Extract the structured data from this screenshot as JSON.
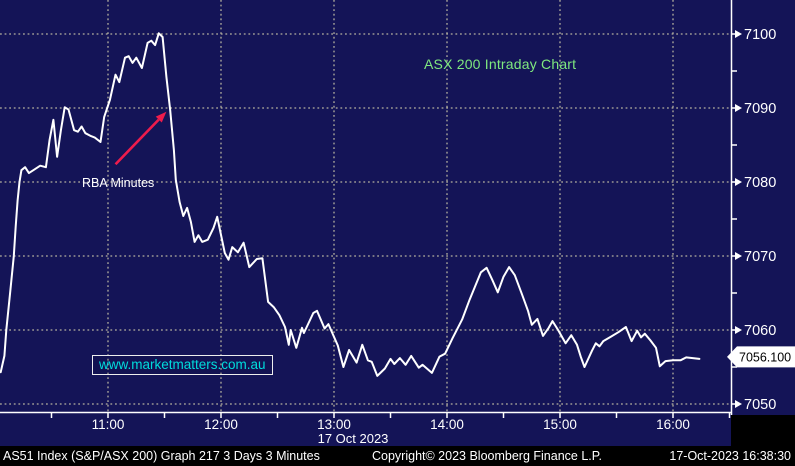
{
  "colors": {
    "background": "#141457",
    "grid": "#b3b09e",
    "line": "#ffffff",
    "axis": "#ffffff",
    "title_green": "#7fe97f",
    "link_cyan": "#00dcdc",
    "arrow_red": "#ee1c4c",
    "footer_bg": "#000000",
    "badge_bg": "#ffffff",
    "badge_text": "#000000"
  },
  "link": {
    "text": "www.marketmatters.com.au"
  },
  "footer": {
    "left": "AS51 Index (S&P/ASX 200) Graph 217 3 Days 3 Minutes",
    "center": "Copyright© 2023 Bloomberg Finance L.P.",
    "right": "17-Oct-2023 16:38:30"
  },
  "chart_data": {
    "type": "line",
    "title": "ASX 200 Intraday Chart",
    "grid": "dotted",
    "legend": "none",
    "last_price": "7056.100",
    "x_axis": {
      "date_label": "17 Oct 2023",
      "tick_labels": [
        "11:00",
        "12:00",
        "13:00",
        "14:00",
        "15:00",
        "16:00"
      ],
      "minor_tick_interval_minutes": 30,
      "range": [
        "10:02",
        "16:31"
      ]
    },
    "y_axis": {
      "side": "right",
      "tick_labels": [
        7100,
        7090,
        7080,
        7070,
        7060,
        7050
      ],
      "minor_ticks": [
        7095,
        7085,
        7075,
        7065,
        7055
      ],
      "range": [
        7048.5,
        7104.6
      ]
    },
    "annotations": [
      {
        "text": "RBA Minutes",
        "arrow_from": [
          "11:04",
          7082.4
        ],
        "arrow_to": [
          "11:31",
          7089.5
        ]
      }
    ],
    "series": [
      {
        "name": "AS51 Index intraday price",
        "points": [
          [
            "10:03",
            7054.3
          ],
          [
            "10:05",
            7056.5
          ],
          [
            "10:06",
            7060.0
          ],
          [
            "10:08",
            7065.0
          ],
          [
            "10:10",
            7070.0
          ],
          [
            "10:11",
            7074.0
          ],
          [
            "10:12",
            7077.5
          ],
          [
            "10:13",
            7080.0
          ],
          [
            "10:14",
            7081.6
          ],
          [
            "10:16",
            7082.0
          ],
          [
            "10:18",
            7081.2
          ],
          [
            "10:21",
            7081.7
          ],
          [
            "10:24",
            7082.2
          ],
          [
            "10:27",
            7082.0
          ],
          [
            "10:29",
            7085.7
          ],
          [
            "10:31",
            7088.4
          ],
          [
            "10:33",
            7083.4
          ],
          [
            "10:35",
            7087.0
          ],
          [
            "10:37",
            7090.1
          ],
          [
            "10:39",
            7089.8
          ],
          [
            "10:42",
            7087.0
          ],
          [
            "10:44",
            7086.8
          ],
          [
            "10:46",
            7087.5
          ],
          [
            "10:48",
            7086.6
          ],
          [
            "10:51",
            7086.2
          ],
          [
            "10:53",
            7086.0
          ],
          [
            "10:56",
            7085.4
          ],
          [
            "10:58",
            7088.8
          ],
          [
            "11:01",
            7091.1
          ],
          [
            "11:04",
            7094.5
          ],
          [
            "11:06",
            7093.5
          ],
          [
            "11:09",
            7096.8
          ],
          [
            "11:11",
            7097.0
          ],
          [
            "11:13",
            7096.1
          ],
          [
            "11:15",
            7096.8
          ],
          [
            "11:18",
            7095.4
          ],
          [
            "11:21",
            7098.8
          ],
          [
            "11:23",
            7099.1
          ],
          [
            "11:25",
            7098.5
          ],
          [
            "11:27",
            7100.1
          ],
          [
            "11:29",
            7099.6
          ],
          [
            "11:31",
            7094.2
          ],
          [
            "11:33",
            7089.7
          ],
          [
            "11:35",
            7084.3
          ],
          [
            "11:36",
            7080.3
          ],
          [
            "11:38",
            7077.3
          ],
          [
            "11:40",
            7075.4
          ],
          [
            "11:42",
            7076.5
          ],
          [
            "11:44",
            7074.6
          ],
          [
            "11:46",
            7071.9
          ],
          [
            "11:48",
            7072.8
          ],
          [
            "11:50",
            7071.9
          ],
          [
            "11:53",
            7072.2
          ],
          [
            "11:56",
            7073.8
          ],
          [
            "11:58",
            7075.3
          ],
          [
            "12:02",
            7070.4
          ],
          [
            "12:04",
            7069.5
          ],
          [
            "12:06",
            7071.2
          ],
          [
            "12:09",
            7070.5
          ],
          [
            "12:12",
            7071.8
          ],
          [
            "12:15",
            7068.5
          ],
          [
            "12:19",
            7069.6
          ],
          [
            "12:22",
            7069.7
          ],
          [
            "12:25",
            7063.8
          ],
          [
            "12:28",
            7063.1
          ],
          [
            "12:31",
            7062.0
          ],
          [
            "12:34",
            7060.4
          ],
          [
            "12:36",
            7058.0
          ],
          [
            "12:37",
            7060.0
          ],
          [
            "12:40",
            7057.6
          ],
          [
            "12:43",
            7060.3
          ],
          [
            "12:44",
            7059.6
          ],
          [
            "12:49",
            7062.3
          ],
          [
            "12:51",
            7062.6
          ],
          [
            "12:55",
            7060.2
          ],
          [
            "12:57",
            7060.8
          ],
          [
            "13:02",
            7057.9
          ],
          [
            "13:05",
            7055.0
          ],
          [
            "13:08",
            7057.3
          ],
          [
            "13:12",
            7055.6
          ],
          [
            "13:15",
            7058.0
          ],
          [
            "13:18",
            7055.9
          ],
          [
            "13:20",
            7055.7
          ],
          [
            "13:23",
            7053.8
          ],
          [
            "13:27",
            7054.8
          ],
          [
            "13:30",
            7056.1
          ],
          [
            "13:32",
            7055.4
          ],
          [
            "13:35",
            7056.2
          ],
          [
            "13:38",
            7055.3
          ],
          [
            "13:41",
            7056.5
          ],
          [
            "13:45",
            7054.9
          ],
          [
            "13:47",
            7055.3
          ],
          [
            "13:52",
            7054.2
          ],
          [
            "13:56",
            7056.4
          ],
          [
            "13:59",
            7056.8
          ],
          [
            "14:03",
            7058.9
          ],
          [
            "14:08",
            7061.4
          ],
          [
            "14:12",
            7064.1
          ],
          [
            "14:18",
            7067.8
          ],
          [
            "14:21",
            7068.4
          ],
          [
            "14:24",
            7066.8
          ],
          [
            "14:27",
            7065.1
          ],
          [
            "14:30",
            7067.2
          ],
          [
            "14:33",
            7068.5
          ],
          [
            "14:36",
            7067.4
          ],
          [
            "14:40",
            7064.7
          ],
          [
            "14:43",
            7062.6
          ],
          [
            "14:45",
            7060.7
          ],
          [
            "14:48",
            7061.5
          ],
          [
            "14:51",
            7059.2
          ],
          [
            "14:54",
            7060.3
          ],
          [
            "14:56",
            7061.2
          ],
          [
            "14:59",
            7060.0
          ],
          [
            "15:03",
            7058.2
          ],
          [
            "15:06",
            7059.3
          ],
          [
            "15:09",
            7058.0
          ],
          [
            "15:11",
            7056.4
          ],
          [
            "15:13",
            7055.0
          ],
          [
            "15:17",
            7057.2
          ],
          [
            "15:19",
            7058.2
          ],
          [
            "15:21",
            7057.8
          ],
          [
            "15:23",
            7058.5
          ],
          [
            "15:27",
            7059.1
          ],
          [
            "15:31",
            7059.7
          ],
          [
            "15:35",
            7060.4
          ],
          [
            "15:38",
            7058.5
          ],
          [
            "15:41",
            7059.9
          ],
          [
            "15:43",
            7059.0
          ],
          [
            "15:45",
            7059.5
          ],
          [
            "15:48",
            7058.6
          ],
          [
            "15:51",
            7057.6
          ],
          [
            "15:53",
            7055.1
          ],
          [
            "15:56",
            7055.8
          ],
          [
            "16:00",
            7055.9
          ],
          [
            "16:04",
            7055.9
          ],
          [
            "16:07",
            7056.3
          ],
          [
            "16:14",
            7056.1
          ]
        ]
      }
    ]
  }
}
